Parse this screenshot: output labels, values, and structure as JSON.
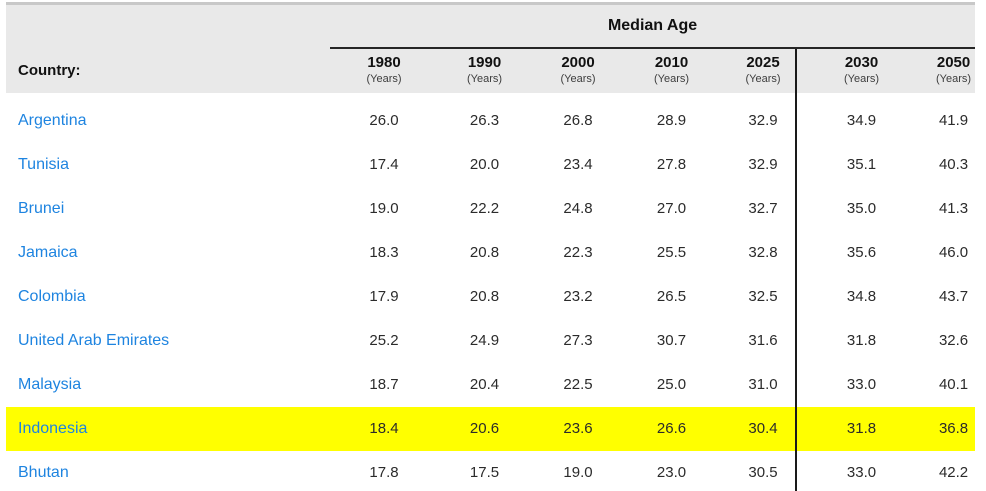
{
  "table": {
    "group_header": "Median Age",
    "country_header": "Country:",
    "columns": [
      {
        "year": "1980",
        "unit": "(Years)"
      },
      {
        "year": "1990",
        "unit": "(Years)"
      },
      {
        "year": "2000",
        "unit": "(Years)"
      },
      {
        "year": "2010",
        "unit": "(Years)"
      },
      {
        "year": "2025",
        "unit": "(Years)"
      },
      {
        "year": "2030",
        "unit": "(Years)"
      },
      {
        "year": "2050",
        "unit": "(Years)"
      }
    ],
    "rows": [
      {
        "country": "Argentina",
        "values": [
          "26.0",
          "26.3",
          "26.8",
          "28.9",
          "32.9",
          "34.9",
          "41.9"
        ],
        "highlighted": false
      },
      {
        "country": "Tunisia",
        "values": [
          "17.4",
          "20.0",
          "23.4",
          "27.8",
          "32.9",
          "35.1",
          "40.3"
        ],
        "highlighted": false
      },
      {
        "country": "Brunei",
        "values": [
          "19.0",
          "22.2",
          "24.8",
          "27.0",
          "32.7",
          "35.0",
          "41.3"
        ],
        "highlighted": false
      },
      {
        "country": "Jamaica",
        "values": [
          "18.3",
          "20.8",
          "22.3",
          "25.5",
          "32.8",
          "35.6",
          "46.0"
        ],
        "highlighted": false
      },
      {
        "country": "Colombia",
        "values": [
          "17.9",
          "20.8",
          "23.2",
          "26.5",
          "32.5",
          "34.8",
          "43.7"
        ],
        "highlighted": false
      },
      {
        "country": "United Arab Emirates",
        "values": [
          "25.2",
          "24.9",
          "27.3",
          "30.7",
          "31.6",
          "31.8",
          "32.6"
        ],
        "highlighted": false
      },
      {
        "country": "Malaysia",
        "values": [
          "18.7",
          "20.4",
          "22.5",
          "25.0",
          "31.0",
          "33.0",
          "40.1"
        ],
        "highlighted": false
      },
      {
        "country": "Indonesia",
        "values": [
          "18.4",
          "20.6",
          "23.6",
          "26.6",
          "30.4",
          "31.8",
          "36.8"
        ],
        "highlighted": true
      },
      {
        "country": "Bhutan",
        "values": [
          "17.8",
          "17.5",
          "19.0",
          "23.0",
          "30.5",
          "33.0",
          "42.2"
        ],
        "highlighted": false
      }
    ]
  },
  "colors": {
    "highlight": "#ffff00",
    "link": "#1e84e0",
    "header_bg": "#e9e9e9",
    "divider": "#1a1a1a",
    "rule": "#262626",
    "top_border": "#c8c8c8"
  }
}
